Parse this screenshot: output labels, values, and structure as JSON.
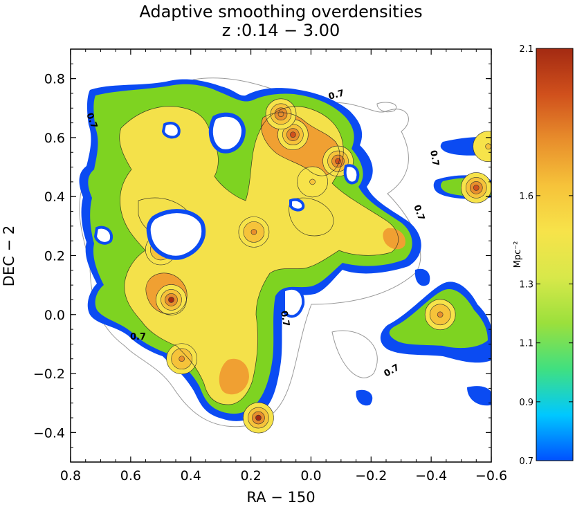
{
  "chart_data": {
    "type": "heatmap",
    "title": "Adaptive smoothing overdensities",
    "subtitle": "z :0.14 − 3.00",
    "xlabel": "RA − 150",
    "ylabel": "DEC − 2",
    "xlim": [
      0.8,
      -0.6
    ],
    "ylim": [
      -0.5,
      0.9
    ],
    "xticks": [
      0.8,
      0.6,
      0.4,
      0.2,
      0.0,
      -0.2,
      -0.4,
      -0.6
    ],
    "xtick_labels": [
      "0.8",
      "0.6",
      "0.4",
      "0.2",
      "0.0",
      "−0.2",
      "−0.4",
      "−0.6"
    ],
    "yticks": [
      -0.4,
      -0.2,
      0.0,
      0.2,
      0.4,
      0.6,
      0.8
    ],
    "ytick_labels": [
      "−0.4",
      "−0.2",
      "0.0",
      "0.2",
      "0.4",
      "0.6",
      "0.8"
    ],
    "colorbar": {
      "label": "Mpc⁻²",
      "range": [
        0.7,
        2.1
      ],
      "ticks": [
        0.7,
        0.9,
        1.1,
        1.3,
        1.6,
        2.1
      ],
      "tick_labels": [
        "0.7",
        "0.9",
        "1.1",
        "1.3",
        "1.6",
        "2.1"
      ],
      "colors": [
        "#0050ff",
        "#00c8ff",
        "#40e080",
        "#9be03c",
        "#d8e84a",
        "#f7e34a",
        "#f6c33a",
        "#e88e2c",
        "#d0501c",
        "#a32a12"
      ]
    },
    "contour_label": "0.7",
    "peaks": [
      {
        "x": 0.465,
        "y": 0.05,
        "value": 2.1
      },
      {
        "x": 0.175,
        "y": -0.35,
        "value": 2.1
      },
      {
        "x": 0.06,
        "y": 0.61,
        "value": 2.0
      },
      {
        "x": -0.09,
        "y": 0.52,
        "value": 2.0
      },
      {
        "x": -0.55,
        "y": 0.43,
        "value": 2.0
      },
      {
        "x": 0.1,
        "y": 0.68,
        "value": 1.85
      },
      {
        "x": -0.005,
        "y": 0.45,
        "value": 1.6
      },
      {
        "x": 0.43,
        "y": -0.15,
        "value": 1.75
      },
      {
        "x": 0.19,
        "y": 0.28,
        "value": 1.8
      },
      {
        "x": -0.43,
        "y": 0.0,
        "value": 1.75
      },
      {
        "x": -0.59,
        "y": 0.57,
        "value": 1.6
      },
      {
        "x": 0.5,
        "y": 0.22,
        "value": 1.7
      }
    ]
  }
}
